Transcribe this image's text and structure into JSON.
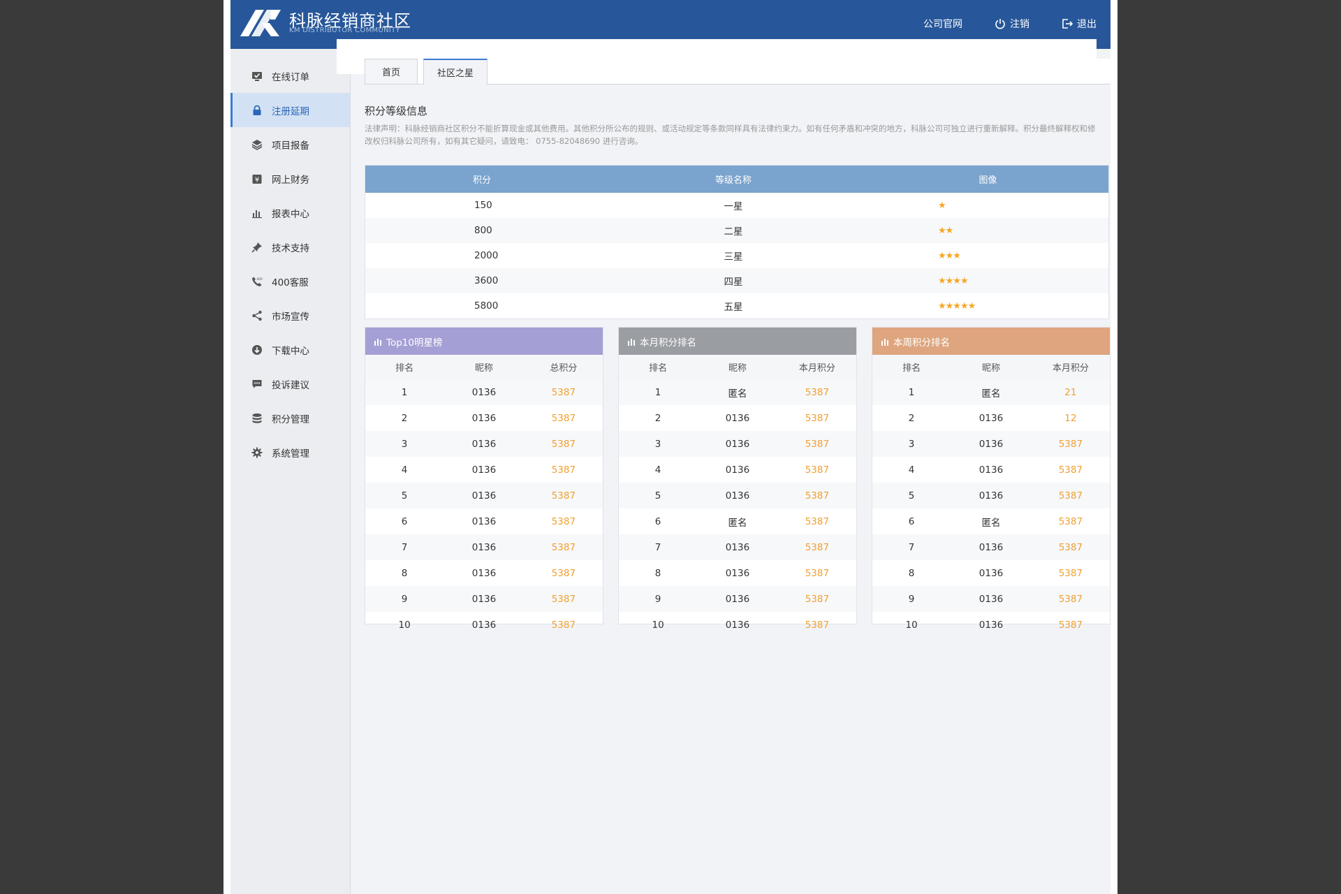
{
  "header": {
    "title": "科脉经销商社区",
    "subtitle": "KM DISTRIBUTOR COMMUNITY",
    "nav": {
      "official_site": "公司官网",
      "logout": "注销",
      "exit": "退出"
    },
    "bg_color": "#27579a"
  },
  "sidebar": {
    "items": [
      {
        "label": "在线订单",
        "icon": "monitor-check-icon"
      },
      {
        "label": "注册延期",
        "icon": "lock-icon",
        "active": true
      },
      {
        "label": "项目报备",
        "icon": "layers-icon"
      },
      {
        "label": "网上财务",
        "icon": "yen-wallet-icon"
      },
      {
        "label": "报表中心",
        "icon": "bar-chart-icon"
      },
      {
        "label": "技术支持",
        "icon": "pin-icon"
      },
      {
        "label": "400客服",
        "icon": "phone-icon"
      },
      {
        "label": "市场宣传",
        "icon": "share-icon"
      },
      {
        "label": "下载中心",
        "icon": "download-icon"
      },
      {
        "label": "投诉建议",
        "icon": "chat-icon"
      },
      {
        "label": "积分管理",
        "icon": "database-icon"
      },
      {
        "label": "系统管理",
        "icon": "gear-icon"
      }
    ]
  },
  "tabs": [
    {
      "label": "首页"
    },
    {
      "label": "社区之星",
      "active": true
    }
  ],
  "level_info": {
    "title": "积分等级信息",
    "notice": "法律声明：科脉经销商社区积分不能折算现金或其他费用。其他积分所公布的规则、或活动规定等条款同样具有法律约束力。如有任何矛盾和冲突的地方，科脉公司可独立进行重新解释。积分最终解释权和修改权归科脉公司所有，如有其它疑问，请致电： 0755-82048690 进行咨询。",
    "headers": [
      "积分",
      "等级名称",
      "图像"
    ],
    "rows": [
      {
        "points": "150",
        "name": "一星",
        "stars": "★"
      },
      {
        "points": "800",
        "name": "二星",
        "stars": "★★"
      },
      {
        "points": "2000",
        "name": "三星",
        "stars": "★★★"
      },
      {
        "points": "3600",
        "name": "四星",
        "stars": "★★★★"
      },
      {
        "points": "5800",
        "name": "五星",
        "stars": "★★★★★"
      }
    ],
    "header_color": "#7aa3cd",
    "star_color": "#f5a623"
  },
  "panels": [
    {
      "title": "Top10明星榜",
      "color": "#a49fd4",
      "headers": [
        "排名",
        "昵称",
        "总积分"
      ],
      "rows": [
        [
          "1",
          "0136",
          "5387"
        ],
        [
          "2",
          "0136",
          "5387"
        ],
        [
          "3",
          "0136",
          "5387"
        ],
        [
          "4",
          "0136",
          "5387"
        ],
        [
          "5",
          "0136",
          "5387"
        ],
        [
          "6",
          "0136",
          "5387"
        ],
        [
          "7",
          "0136",
          "5387"
        ],
        [
          "8",
          "0136",
          "5387"
        ],
        [
          "9",
          "0136",
          "5387"
        ],
        [
          "10",
          "0136",
          "5387"
        ]
      ]
    },
    {
      "title": "本月积分排名",
      "color": "#9a9da2",
      "headers": [
        "排名",
        "昵称",
        "本月积分"
      ],
      "rows": [
        [
          "1",
          "匿名",
          "5387"
        ],
        [
          "2",
          "0136",
          "5387"
        ],
        [
          "3",
          "0136",
          "5387"
        ],
        [
          "4",
          "0136",
          "5387"
        ],
        [
          "5",
          "0136",
          "5387"
        ],
        [
          "6",
          "匿名",
          "5387"
        ],
        [
          "7",
          "0136",
          "5387"
        ],
        [
          "8",
          "0136",
          "5387"
        ],
        [
          "9",
          "0136",
          "5387"
        ],
        [
          "10",
          "0136",
          "5387"
        ]
      ]
    },
    {
      "title": "本周积分排名",
      "color": "#dea57e",
      "headers": [
        "排名",
        "昵称",
        "本月积分"
      ],
      "rows": [
        [
          "1",
          "匿名",
          "21"
        ],
        [
          "2",
          "0136",
          "12"
        ],
        [
          "3",
          "0136",
          "5387"
        ],
        [
          "4",
          "0136",
          "5387"
        ],
        [
          "5",
          "0136",
          "5387"
        ],
        [
          "6",
          "匿名",
          "5387"
        ],
        [
          "7",
          "0136",
          "5387"
        ],
        [
          "8",
          "0136",
          "5387"
        ],
        [
          "9",
          "0136",
          "5387"
        ],
        [
          "10",
          "0136",
          "5387"
        ]
      ]
    }
  ],
  "score_color": "#f0a030"
}
